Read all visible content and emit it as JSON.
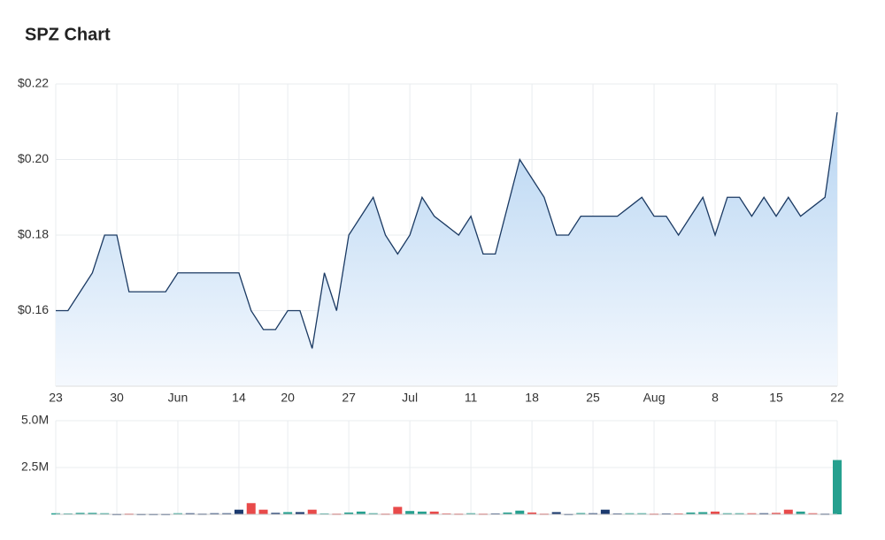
{
  "chart_data": [
    {
      "type": "line",
      "title": "SPZ Chart",
      "categories": [
        "23",
        null,
        null,
        null,
        null,
        "30",
        null,
        null,
        null,
        null,
        "Jun",
        null,
        null,
        null,
        null,
        "14",
        null,
        null,
        null,
        "20",
        null,
        null,
        null,
        null,
        "27",
        null,
        null,
        null,
        null,
        "Jul",
        null,
        null,
        null,
        null,
        "11",
        null,
        null,
        null,
        null,
        "18",
        null,
        null,
        null,
        null,
        "25",
        null,
        null,
        null,
        null,
        "Aug",
        null,
        null,
        null,
        null,
        "8",
        null,
        null,
        null,
        null,
        "15",
        null,
        null,
        null,
        null,
        "22"
      ],
      "values": [
        0.16,
        0.16,
        0.165,
        0.17,
        0.18,
        0.18,
        0.165,
        0.165,
        0.165,
        0.165,
        0.17,
        0.17,
        0.17,
        0.17,
        0.17,
        0.17,
        0.16,
        0.155,
        0.155,
        0.16,
        0.16,
        0.15,
        0.17,
        0.16,
        0.18,
        0.185,
        0.19,
        0.18,
        0.175,
        0.18,
        0.19,
        0.185,
        0.1825,
        0.18,
        0.185,
        0.175,
        0.175,
        0.1875,
        0.2,
        0.195,
        0.19,
        0.18,
        0.18,
        0.185,
        0.185,
        0.185,
        0.185,
        0.1875,
        0.19,
        0.185,
        0.185,
        0.18,
        0.185,
        0.19,
        0.18,
        0.19,
        0.19,
        0.185,
        0.19,
        0.185,
        0.19,
        0.185,
        0.1875,
        0.19,
        0.2125
      ],
      "color": "#1b3a63",
      "ylim": [
        0.14,
        0.22
      ],
      "yticks": [
        {
          "value": 0.16,
          "label": "$0.16"
        },
        {
          "value": 0.18,
          "label": "$0.18"
        },
        {
          "value": 0.2,
          "label": "$0.20"
        },
        {
          "value": 0.22,
          "label": "$0.22"
        }
      ],
      "grid": true
    },
    {
      "type": "bar",
      "values": [
        60000,
        50000,
        80000,
        80000,
        60000,
        30000,
        40000,
        30000,
        30000,
        30000,
        60000,
        60000,
        40000,
        60000,
        60000,
        250000,
        600000,
        250000,
        80000,
        120000,
        120000,
        250000,
        50000,
        40000,
        100000,
        150000,
        60000,
        40000,
        400000,
        180000,
        150000,
        150000,
        50000,
        40000,
        60000,
        40000,
        50000,
        100000,
        200000,
        100000,
        40000,
        120000,
        30000,
        70000,
        60000,
        250000,
        50000,
        60000,
        60000,
        40000,
        50000,
        50000,
        100000,
        120000,
        150000,
        60000,
        60000,
        60000,
        60000,
        80000,
        250000,
        150000,
        60000,
        40000,
        2900000
      ],
      "colors": [
        "#26a08f",
        "#26a08f",
        "#26a08f",
        "#26a08f",
        "#26a08f",
        "#1b3a6e",
        "#e84a4a",
        "#1b3a6e",
        "#1b3a6e",
        "#1b3a6e",
        "#26a08f",
        "#1b3a6e",
        "#1b3a6e",
        "#1b3a6e",
        "#1b3a6e",
        "#1b3a6e",
        "#e84a4a",
        "#e84a4a",
        "#1b3a6e",
        "#26a08f",
        "#1b3a6e",
        "#e84a4a",
        "#26a08f",
        "#e84a4a",
        "#26a08f",
        "#26a08f",
        "#26a08f",
        "#e84a4a",
        "#e84a4a",
        "#26a08f",
        "#26a08f",
        "#e84a4a",
        "#e84a4a",
        "#e84a4a",
        "#26a08f",
        "#e84a4a",
        "#1b3a6e",
        "#26a08f",
        "#26a08f",
        "#e84a4a",
        "#e84a4a",
        "#1b3a6e",
        "#1b3a6e",
        "#26a08f",
        "#1b3a6e",
        "#1b3a6e",
        "#1b3a6e",
        "#26a08f",
        "#26a08f",
        "#e84a4a",
        "#1b3a6e",
        "#e84a4a",
        "#26a08f",
        "#26a08f",
        "#e84a4a",
        "#26a08f",
        "#26a08f",
        "#e84a4a",
        "#1b3a6e",
        "#e84a4a",
        "#e84a4a",
        "#26a08f",
        "#e84a4a",
        "#1b3a6e",
        "#26a08f"
      ],
      "ylim": [
        0,
        5000000
      ],
      "yticks": [
        {
          "value": 2500000,
          "label": "2.5M"
        },
        {
          "value": 5000000,
          "label": "5.0M"
        }
      ],
      "grid": true
    }
  ]
}
